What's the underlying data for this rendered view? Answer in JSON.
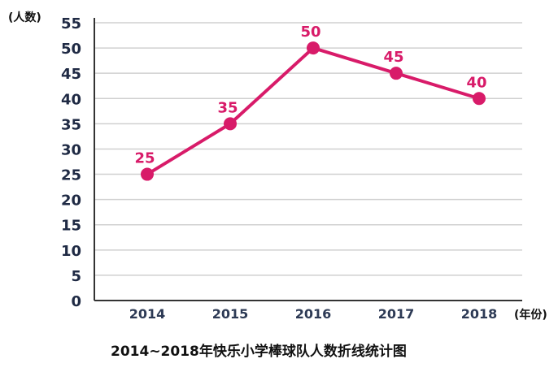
{
  "chart_data": {
    "type": "line",
    "title": "2014~2018年快乐小学棒球队人数折线统计图",
    "ylabel": "(人数)",
    "xlabel": "(年份)",
    "categories": [
      "2014",
      "2015",
      "2016",
      "2017",
      "2018"
    ],
    "series": [
      {
        "values": [
          25,
          35,
          50,
          45,
          40
        ]
      }
    ],
    "ylim": [
      0,
      55
    ],
    "yticks": [
      "0",
      "5",
      "10",
      "15",
      "20",
      "25",
      "30",
      "35",
      "40",
      "45",
      "50",
      "55"
    ],
    "data_labels": [
      "25",
      "35",
      "50",
      "45",
      "40"
    ],
    "grid": "horizontal",
    "colors": {
      "line": "#d81b69",
      "grid": "#d0d0d0",
      "axis": "#333333"
    }
  }
}
